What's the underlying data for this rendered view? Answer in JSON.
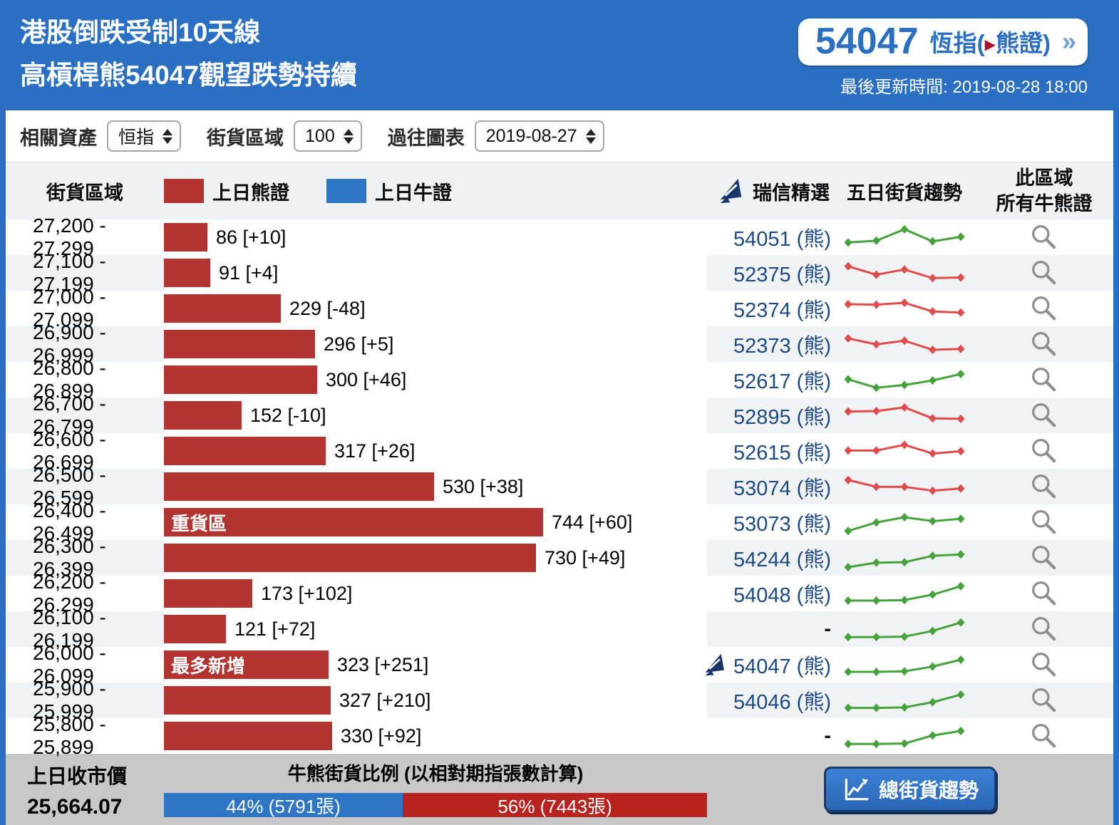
{
  "header": {
    "title_line1": "港股倒跌受制10天線",
    "title_line2": "高槓桿熊54047觀望跌勢持續",
    "ticker": {
      "code": "54047",
      "label_prefix": "恆指(",
      "label_suffix": "熊證)",
      "chevrons": "»"
    },
    "last_update": "最後更新時間: 2019-08-28 18:00"
  },
  "filters": {
    "related_asset_label": "相關資產",
    "related_asset_value": "恒指",
    "range_label": "街貨區域",
    "range_value": "100",
    "history_label": "過往圖表",
    "history_value": "2019-08-27"
  },
  "table": {
    "col_range": "街貨區域",
    "legend_bear": "上日熊證",
    "legend_bull": "上日牛證",
    "col_cs": "瑞信精選",
    "col_trend": "五日街貨趨勢",
    "col_all_line1": "此區域",
    "col_all_line2": "所有牛熊證",
    "max_value": 744,
    "rows": [
      {
        "range": "27,200 - 27,299",
        "value": 86,
        "label": "86 [+10]",
        "badge": null,
        "cs": "54051 (熊)",
        "cs_logo": false,
        "trend_color": "green",
        "trend": [
          30,
          38,
          88,
          35,
          55
        ]
      },
      {
        "range": "27,100 - 27,199",
        "value": 91,
        "label": "91 [+4]",
        "badge": null,
        "cs": "52375 (熊)",
        "cs_logo": false,
        "trend_color": "red",
        "trend": [
          82,
          45,
          68,
          30,
          33
        ]
      },
      {
        "range": "27,000 - 27,099",
        "value": 229,
        "label": "229 [-48]",
        "badge": null,
        "cs": "52374 (熊)",
        "cs_logo": false,
        "trend_color": "red",
        "trend": [
          72,
          70,
          78,
          40,
          35
        ]
      },
      {
        "range": "26,900 - 26,999",
        "value": 296,
        "label": "296 [+5]",
        "badge": null,
        "cs": "52373 (熊)",
        "cs_logo": false,
        "trend_color": "red",
        "trend": [
          78,
          52,
          68,
          28,
          32
        ]
      },
      {
        "range": "26,800 - 26,899",
        "value": 300,
        "label": "300 [+46]",
        "badge": null,
        "cs": "52617 (熊)",
        "cs_logo": false,
        "trend_color": "green",
        "trend": [
          55,
          18,
          30,
          50,
          78
        ]
      },
      {
        "range": "26,700 - 26,799",
        "value": 152,
        "label": "152 [-10]",
        "badge": null,
        "cs": "52895 (熊)",
        "cs_logo": false,
        "trend_color": "red",
        "trend": [
          70,
          72,
          88,
          40,
          38
        ]
      },
      {
        "range": "26,600 - 26,699",
        "value": 317,
        "label": "317 [+26]",
        "badge": null,
        "cs": "52615 (熊)",
        "cs_logo": false,
        "trend_color": "red",
        "trend": [
          55,
          55,
          80,
          42,
          52
        ]
      },
      {
        "range": "26,500 - 26,599",
        "value": 530,
        "label": "530 [+38]",
        "badge": null,
        "cs": "53074 (熊)",
        "cs_logo": false,
        "trend_color": "red",
        "trend": [
          82,
          52,
          52,
          35,
          45
        ]
      },
      {
        "range": "26,400 - 26,499",
        "value": 744,
        "label": "744 [+60]",
        "badge": "重貨區",
        "cs": "53073 (熊)",
        "cs_logo": false,
        "trend_color": "green",
        "trend": [
          15,
          52,
          75,
          58,
          68
        ]
      },
      {
        "range": "26,300 - 26,399",
        "value": 730,
        "label": "730 [+49]",
        "badge": null,
        "cs": "54244 (熊)",
        "cs_logo": false,
        "trend_color": "green",
        "trend": [
          12,
          32,
          34,
          62,
          68
        ]
      },
      {
        "range": "26,200 - 26,299",
        "value": 173,
        "label": "173 [+102]",
        "badge": null,
        "cs": "54048 (熊)",
        "cs_logo": false,
        "trend_color": "green",
        "trend": [
          22,
          22,
          24,
          48,
          85
        ]
      },
      {
        "range": "26,100 - 26,199",
        "value": 121,
        "label": "121 [+72]",
        "badge": null,
        "cs": "-",
        "cs_logo": false,
        "trend_color": "green",
        "trend": [
          18,
          18,
          20,
          45,
          82
        ]
      },
      {
        "range": "26,000 - 26,099",
        "value": 323,
        "label": "323 [+251]",
        "badge": "最多新增",
        "cs": "54047 (熊)",
        "cs_logo": true,
        "trend_color": "green",
        "trend": [
          22,
          22,
          24,
          45,
          75
        ]
      },
      {
        "range": "25,900 - 25,999",
        "value": 327,
        "label": "327 [+210]",
        "badge": null,
        "cs": "54046 (熊)",
        "cs_logo": false,
        "trend_color": "green",
        "trend": [
          20,
          20,
          22,
          45,
          78
        ]
      },
      {
        "range": "25,800 - 25,899",
        "value": 330,
        "label": "330 [+92]",
        "badge": null,
        "cs": "-",
        "cs_logo": false,
        "trend_color": "green",
        "trend": [
          18,
          18,
          20,
          55,
          75
        ]
      }
    ]
  },
  "footer": {
    "close_label": "上日收市價",
    "close_value": "25,664.07",
    "ratio_title": "牛熊街貨比例 (以相對期指張數計算)",
    "bull_pct": 44,
    "bull_label": "44% (5791張)",
    "bear_pct": 56,
    "bear_label": "56% (7443張)",
    "button_label": "總街貨趨勢"
  },
  "colors": {
    "header_blue": "#2a6fc2",
    "bear_red": "#b23330",
    "bull_blue": "#2e75c5",
    "footer_bear_red": "#b7241f",
    "trend_green": "#45a23c",
    "trend_red": "#e04b4b",
    "link_navy": "#1d4a86",
    "logo_navy": "#17366b"
  },
  "icons": {
    "cs_logo": "credit-suisse-sails",
    "magnifier": "magnifier",
    "trend_button": "line-chart-arrow"
  }
}
